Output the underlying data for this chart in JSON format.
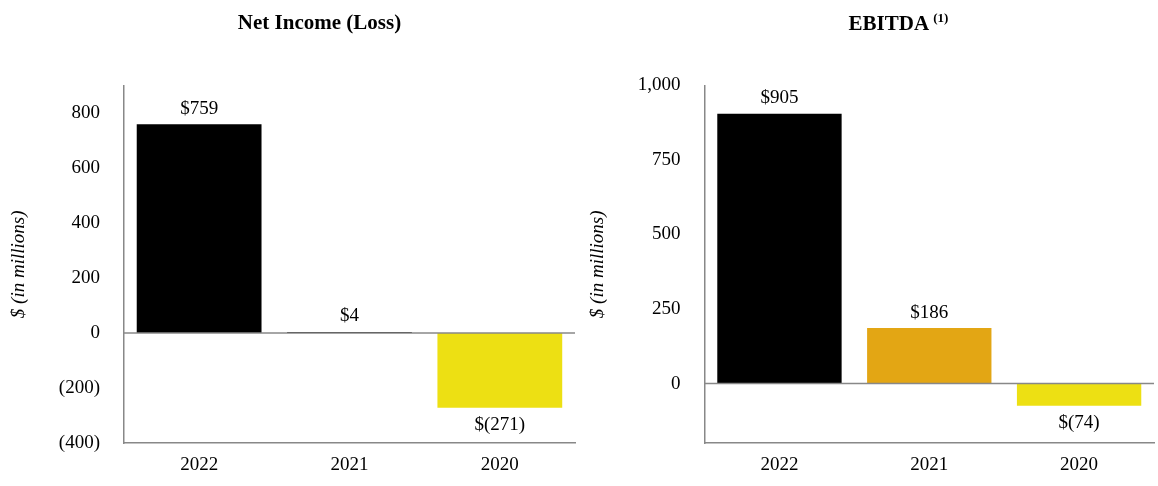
{
  "chart_data": [
    {
      "type": "bar",
      "title": "Net Income (Loss)",
      "ylabel": "$ (in millions)",
      "categories": [
        "2022",
        "2021",
        "2020"
      ],
      "values": [
        759,
        4,
        -271
      ],
      "colors": [
        "#000000",
        "#000000",
        "#ede013"
      ],
      "value_labels": [
        "$759",
        "$4",
        "$(271)"
      ],
      "ylim": [
        -400,
        900
      ],
      "yticks": [
        {
          "value": -400,
          "label": "(400)"
        },
        {
          "value": -200,
          "label": "(200)"
        },
        0,
        200,
        400,
        600,
        800
      ],
      "ref_lines": [
        {
          "axis": "y",
          "value": 0,
          "color": "#888888"
        }
      ],
      "grid": false,
      "legend": false
    },
    {
      "type": "bar",
      "title": "EBITDA $^{(1)}$",
      "ylabel": "$ (in millions)",
      "categories": [
        "2022",
        "2021",
        "2020"
      ],
      "values": [
        905,
        186,
        -74
      ],
      "colors": [
        "#000000",
        "#e3a614",
        "#ede013"
      ],
      "value_labels": [
        "$905",
        "$186",
        "$(74)"
      ],
      "ylim": [
        -200,
        1000
      ],
      "yticks": [
        0,
        250,
        500,
        750,
        {
          "value": 1000,
          "label": "1,000"
        }
      ],
      "ref_lines": [
        {
          "axis": "y",
          "value": 0,
          "color": "#888888"
        }
      ],
      "grid": false,
      "legend": false
    }
  ]
}
